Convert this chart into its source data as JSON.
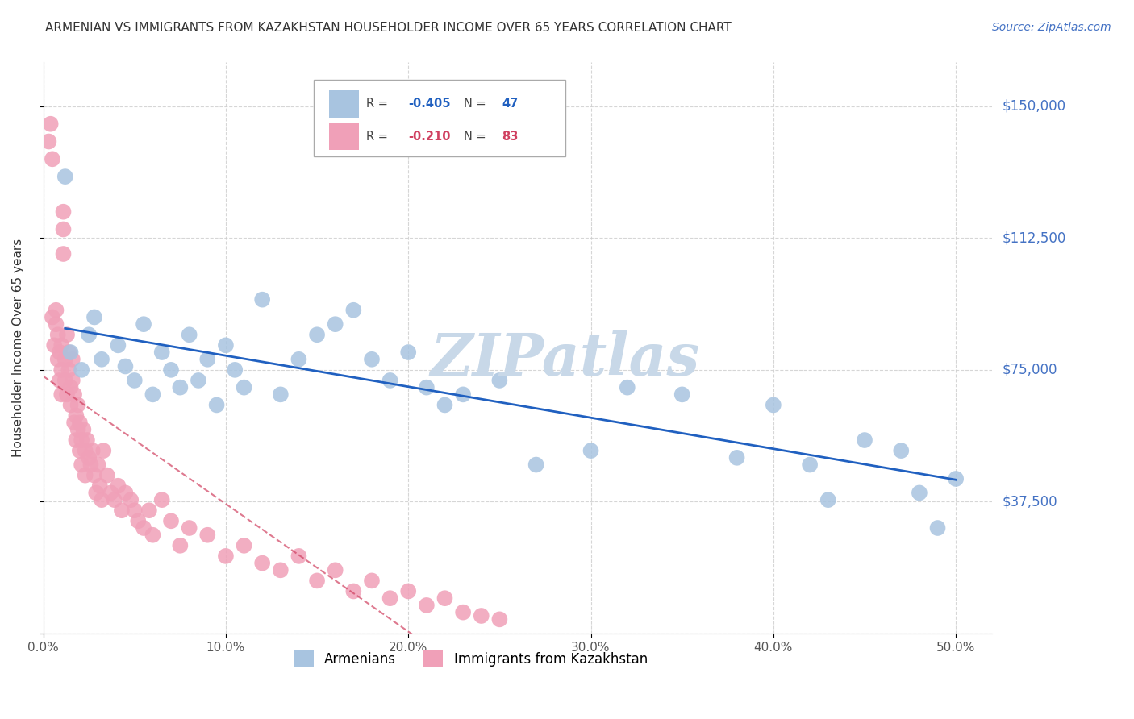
{
  "title": "ARMENIAN VS IMMIGRANTS FROM KAZAKHSTAN HOUSEHOLDER INCOME OVER 65 YEARS CORRELATION CHART",
  "source": "Source: ZipAtlas.com",
  "ylabel": "Householder Income Over 65 years",
  "xlabel_ticks": [
    "0.0%",
    "10.0%",
    "20.0%",
    "30.0%",
    "40.0%",
    "50.0%"
  ],
  "xlabel_vals": [
    0.0,
    10.0,
    20.0,
    30.0,
    40.0,
    50.0
  ],
  "ylim": [
    0,
    162500
  ],
  "xlim": [
    0,
    52
  ],
  "yticks": [
    0,
    37500,
    75000,
    112500,
    150000
  ],
  "ytick_labels": [
    "",
    "$37,500",
    "$75,000",
    "$112,500",
    "$150,000"
  ],
  "watermark": "ZIPatlas",
  "color_armenian": "#a8c4e0",
  "color_kazakh": "#f0a0b8",
  "color_line_armenian": "#2060c0",
  "color_line_kazakh": "#d04060",
  "color_axis": "#4472c4",
  "color_title": "#333333",
  "color_source": "#4472c4",
  "color_watermark": "#c8d8e8",
  "armenian_x": [
    1.2,
    2.1,
    1.5,
    2.5,
    2.8,
    3.2,
    4.1,
    4.5,
    5.0,
    5.5,
    6.0,
    6.5,
    7.0,
    7.5,
    8.0,
    8.5,
    9.0,
    9.5,
    10.0,
    10.5,
    11.0,
    12.0,
    13.0,
    14.0,
    15.0,
    16.0,
    17.0,
    18.0,
    19.0,
    20.0,
    21.0,
    22.0,
    23.0,
    25.0,
    27.0,
    30.0,
    32.0,
    35.0,
    38.0,
    40.0,
    42.0,
    43.0,
    45.0,
    47.0,
    48.0,
    49.0,
    50.0
  ],
  "armenian_y": [
    130000,
    75000,
    80000,
    85000,
    90000,
    78000,
    82000,
    76000,
    72000,
    88000,
    68000,
    80000,
    75000,
    70000,
    85000,
    72000,
    78000,
    65000,
    82000,
    75000,
    70000,
    95000,
    68000,
    78000,
    85000,
    88000,
    92000,
    78000,
    72000,
    80000,
    70000,
    65000,
    68000,
    72000,
    48000,
    52000,
    70000,
    68000,
    50000,
    65000,
    48000,
    38000,
    55000,
    52000,
    40000,
    30000,
    44000
  ],
  "kazakh_x": [
    0.3,
    0.4,
    0.5,
    0.5,
    0.6,
    0.7,
    0.7,
    0.8,
    0.8,
    0.9,
    0.9,
    1.0,
    1.0,
    1.0,
    1.1,
    1.1,
    1.1,
    1.2,
    1.2,
    1.3,
    1.3,
    1.4,
    1.4,
    1.5,
    1.5,
    1.6,
    1.6,
    1.7,
    1.7,
    1.8,
    1.8,
    1.9,
    1.9,
    2.0,
    2.0,
    2.1,
    2.1,
    2.2,
    2.3,
    2.3,
    2.4,
    2.5,
    2.6,
    2.7,
    2.8,
    2.9,
    3.0,
    3.1,
    3.2,
    3.3,
    3.5,
    3.7,
    3.9,
    4.1,
    4.3,
    4.5,
    4.8,
    5.0,
    5.2,
    5.5,
    5.8,
    6.0,
    6.5,
    7.0,
    7.5,
    8.0,
    9.0,
    10.0,
    11.0,
    12.0,
    13.0,
    14.0,
    15.0,
    16.0,
    17.0,
    18.0,
    19.0,
    20.0,
    21.0,
    22.0,
    23.0,
    24.0,
    25.0
  ],
  "kazakh_y": [
    140000,
    145000,
    135000,
    90000,
    82000,
    88000,
    92000,
    78000,
    85000,
    72000,
    80000,
    68000,
    75000,
    82000,
    120000,
    115000,
    108000,
    78000,
    72000,
    68000,
    85000,
    75000,
    80000,
    65000,
    70000,
    72000,
    78000,
    60000,
    68000,
    55000,
    62000,
    58000,
    65000,
    52000,
    60000,
    55000,
    48000,
    58000,
    52000,
    45000,
    55000,
    50000,
    48000,
    52000,
    45000,
    40000,
    48000,
    42000,
    38000,
    52000,
    45000,
    40000,
    38000,
    42000,
    35000,
    40000,
    38000,
    35000,
    32000,
    30000,
    35000,
    28000,
    38000,
    32000,
    25000,
    30000,
    28000,
    22000,
    25000,
    20000,
    18000,
    22000,
    15000,
    18000,
    12000,
    15000,
    10000,
    12000,
    8000,
    10000,
    6000,
    5000,
    4000
  ]
}
